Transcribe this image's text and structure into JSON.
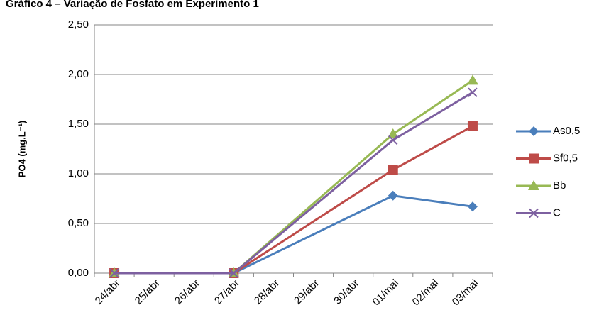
{
  "chart_data": {
    "type": "line",
    "title": "Gráfico 4 – Variação de Fosfato em Experimento 1",
    "y_label": "PO4 (mg.L⁻¹)",
    "categories": [
      "24/abr",
      "25/abr",
      "26/abr",
      "27/abr",
      "28/abr",
      "29/abr",
      "30/abr",
      "01/mai",
      "02/mai",
      "03/mai"
    ],
    "series": [
      {
        "name": "As0,5",
        "color": "#4a7ebb",
        "marker": "diamond",
        "x": [
          "24/abr",
          "27/abr",
          "01/mai",
          "03/mai"
        ],
        "values": [
          0,
          0,
          0.78,
          0.67
        ]
      },
      {
        "name": "Sf0,5",
        "color": "#be4b48",
        "marker": "square",
        "x": [
          "24/abr",
          "27/abr",
          "01/mai",
          "03/mai"
        ],
        "values": [
          0,
          0,
          1.04,
          1.48
        ]
      },
      {
        "name": "Bb",
        "color": "#98b954",
        "marker": "triangle",
        "x": [
          "24/abr",
          "27/abr",
          "01/mai",
          "03/mai"
        ],
        "values": [
          0,
          0,
          1.4,
          1.94
        ]
      },
      {
        "name": "C",
        "color": "#7d60a0",
        "marker": "x",
        "x": [
          "24/abr",
          "27/abr",
          "01/mai",
          "03/mai"
        ],
        "values": [
          0,
          0,
          1.34,
          1.82
        ]
      }
    ],
    "ylim": [
      0,
      2.5
    ],
    "yticks": [
      {
        "value": 0,
        "label": "0,00"
      },
      {
        "value": 0.5,
        "label": "0,50"
      },
      {
        "value": 1,
        "label": "1,00"
      },
      {
        "value": 1.5,
        "label": "1,50"
      },
      {
        "value": 2,
        "label": "2,00"
      },
      {
        "value": 2.5,
        "label": "2,50"
      }
    ],
    "grid": true,
    "legend": "right"
  }
}
